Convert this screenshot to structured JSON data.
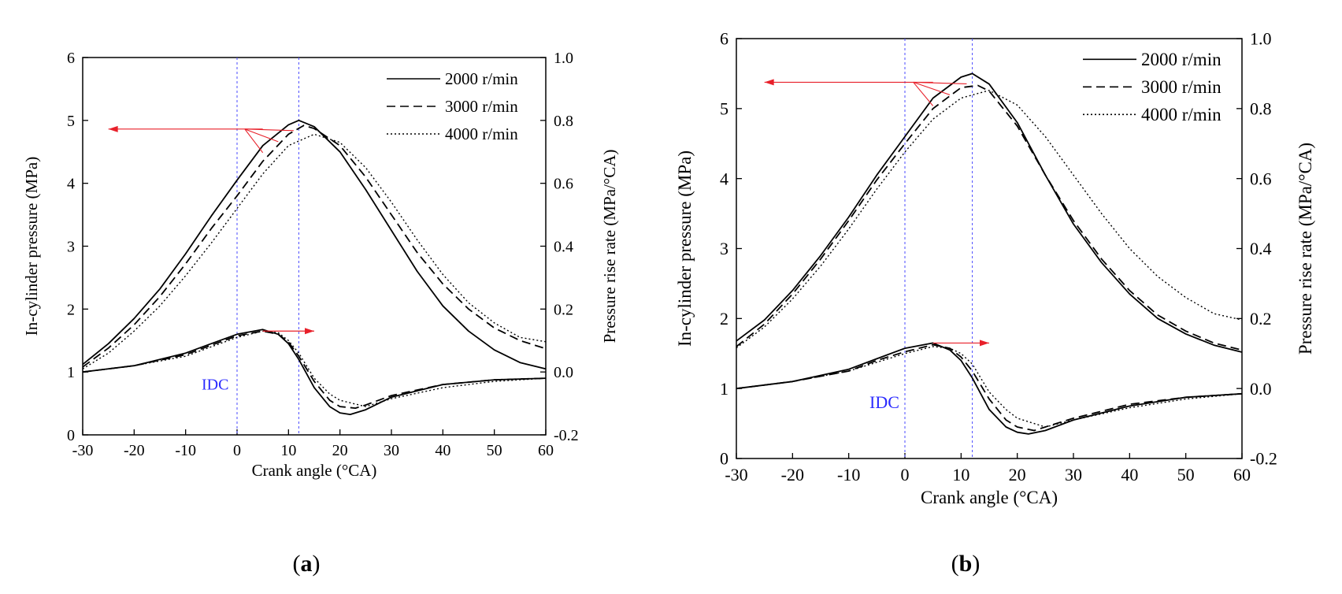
{
  "chart_data": [
    {
      "type": "line",
      "panel_label": "a",
      "xlabel": "Crank angle (°CA)",
      "ylabel_left": "In-cylinder pressure (MPa)",
      "ylabel_right": "Pressure rise rate (MPa/°CA)",
      "xlim": [
        -30,
        60
      ],
      "ylim_left": [
        0,
        6
      ],
      "ylim_right": [
        -0.2,
        1.0
      ],
      "xticks": [
        -30,
        -20,
        -10,
        0,
        10,
        20,
        30,
        40,
        50,
        60
      ],
      "yticks_left": [
        0,
        1,
        2,
        3,
        4,
        5,
        6
      ],
      "yticks_right": [
        "-0.2",
        "0.0",
        "0.2",
        "0.4",
        "0.6",
        "0.8",
        "1.0"
      ],
      "annotation": "IDC",
      "annotation_x": 0,
      "reference_line_x": 12,
      "legend": [
        "2000 r/min",
        "3000 r/min",
        "4000 r/min"
      ],
      "series": [
        {
          "name": "2000 r/min",
          "kind": "pressure",
          "style": "solid",
          "x": [
            -30,
            -25,
            -20,
            -15,
            -10,
            -5,
            0,
            5,
            10,
            12,
            15,
            20,
            25,
            30,
            35,
            40,
            45,
            50,
            55,
            60
          ],
          "y": [
            1.12,
            1.45,
            1.85,
            2.32,
            2.88,
            3.48,
            4.05,
            4.6,
            4.93,
            5.0,
            4.9,
            4.5,
            3.9,
            3.25,
            2.6,
            2.05,
            1.65,
            1.35,
            1.15,
            1.05
          ]
        },
        {
          "name": "3000 r/min",
          "kind": "pressure",
          "style": "dashed",
          "x": [
            -30,
            -25,
            -20,
            -15,
            -10,
            -5,
            0,
            5,
            10,
            13,
            15,
            20,
            25,
            30,
            35,
            40,
            45,
            50,
            55,
            60
          ],
          "y": [
            1.08,
            1.38,
            1.75,
            2.2,
            2.72,
            3.28,
            3.8,
            4.35,
            4.78,
            4.92,
            4.87,
            4.6,
            4.1,
            3.5,
            2.9,
            2.4,
            2.0,
            1.7,
            1.5,
            1.37
          ]
        },
        {
          "name": "4000 r/min",
          "kind": "pressure",
          "style": "dotted",
          "x": [
            -30,
            -25,
            -20,
            -15,
            -10,
            -5,
            0,
            5,
            10,
            15,
            20,
            25,
            30,
            35,
            40,
            45,
            50,
            55,
            60
          ],
          "y": [
            1.05,
            1.3,
            1.65,
            2.05,
            2.53,
            3.05,
            3.6,
            4.15,
            4.6,
            4.78,
            4.65,
            4.25,
            3.7,
            3.1,
            2.55,
            2.1,
            1.78,
            1.55,
            1.48
          ]
        },
        {
          "name": "2000 r/min",
          "kind": "rate",
          "style": "solid",
          "x": [
            -30,
            -20,
            -10,
            -5,
            0,
            5,
            8,
            10,
            12,
            15,
            18,
            20,
            22,
            25,
            30,
            40,
            50,
            60
          ],
          "y": [
            0.0,
            0.02,
            0.06,
            0.09,
            0.12,
            0.135,
            0.12,
            0.09,
            0.04,
            -0.05,
            -0.11,
            -0.13,
            -0.135,
            -0.12,
            -0.08,
            -0.04,
            -0.025,
            -0.02
          ]
        },
        {
          "name": "3000 r/min",
          "kind": "rate",
          "style": "dashed",
          "x": [
            -30,
            -20,
            -10,
            -5,
            0,
            5,
            8,
            10,
            12,
            15,
            18,
            20,
            23,
            25,
            30,
            40,
            50,
            60
          ],
          "y": [
            0.0,
            0.02,
            0.055,
            0.085,
            0.115,
            0.13,
            0.12,
            0.095,
            0.05,
            -0.03,
            -0.09,
            -0.11,
            -0.115,
            -0.105,
            -0.075,
            -0.04,
            -0.025,
            -0.02
          ]
        },
        {
          "name": "4000 r/min",
          "kind": "rate",
          "style": "dotted",
          "x": [
            -30,
            -20,
            -10,
            -5,
            0,
            5,
            8,
            10,
            12,
            15,
            18,
            20,
            25,
            30,
            40,
            50,
            60
          ],
          "y": [
            0.0,
            0.02,
            0.05,
            0.08,
            0.11,
            0.13,
            0.125,
            0.1,
            0.06,
            -0.02,
            -0.07,
            -0.09,
            -0.11,
            -0.085,
            -0.05,
            -0.03,
            -0.02
          ]
        }
      ]
    },
    {
      "type": "line",
      "panel_label": "b",
      "xlabel": "Crank angle (°CA)",
      "ylabel_left": "In-cylinder pressure (MPa)",
      "ylabel_right": "Pressure rise rate (MPa/°CA)",
      "xlim": [
        -30,
        60
      ],
      "ylim_left": [
        0,
        6
      ],
      "ylim_right": [
        -0.2,
        1.0
      ],
      "xticks": [
        -30,
        -20,
        -10,
        0,
        10,
        20,
        30,
        40,
        50,
        60
      ],
      "yticks_left": [
        0,
        1,
        2,
        3,
        4,
        5,
        6
      ],
      "yticks_right": [
        "-0.2",
        "0.0",
        "0.2",
        "0.4",
        "0.6",
        "0.8",
        "1.0"
      ],
      "annotation": "IDC",
      "annotation_x": 0,
      "reference_line_x": 12,
      "legend": [
        "2000 r/min",
        "3000 r/min",
        "4000 r/min"
      ],
      "series": [
        {
          "name": "2000 r/min",
          "kind": "pressure",
          "style": "solid",
          "x": [
            -30,
            -25,
            -20,
            -15,
            -10,
            -5,
            0,
            5,
            10,
            12,
            15,
            20,
            25,
            30,
            35,
            40,
            45,
            50,
            55,
            60
          ],
          "y": [
            1.68,
            1.98,
            2.4,
            2.9,
            3.45,
            4.05,
            4.6,
            5.15,
            5.45,
            5.5,
            5.35,
            4.8,
            4.05,
            3.35,
            2.8,
            2.35,
            2.0,
            1.78,
            1.62,
            1.52
          ]
        },
        {
          "name": "3000 r/min",
          "kind": "pressure",
          "style": "dashed",
          "x": [
            -30,
            -25,
            -20,
            -15,
            -10,
            -5,
            0,
            5,
            10,
            13,
            15,
            20,
            25,
            30,
            35,
            40,
            45,
            50,
            55,
            60
          ],
          "y": [
            1.6,
            1.92,
            2.35,
            2.85,
            3.4,
            3.98,
            4.5,
            5.0,
            5.3,
            5.33,
            5.25,
            4.75,
            4.05,
            3.4,
            2.85,
            2.4,
            2.05,
            1.82,
            1.65,
            1.55
          ]
        },
        {
          "name": "4000 r/min",
          "kind": "pressure",
          "style": "dotted",
          "x": [
            -30,
            -25,
            -20,
            -15,
            -10,
            -5,
            0,
            5,
            10,
            15,
            20,
            25,
            30,
            35,
            40,
            45,
            50,
            55,
            60
          ],
          "y": [
            1.58,
            1.88,
            2.28,
            2.75,
            3.28,
            3.85,
            4.38,
            4.85,
            5.15,
            5.26,
            5.05,
            4.6,
            4.05,
            3.5,
            3.0,
            2.6,
            2.3,
            2.07,
            1.98
          ]
        },
        {
          "name": "2000 r/min",
          "kind": "rate",
          "style": "solid",
          "x": [
            -30,
            -20,
            -10,
            -5,
            0,
            5,
            8,
            10,
            12,
            15,
            18,
            20,
            22,
            25,
            30,
            40,
            50,
            60
          ],
          "y": [
            0.0,
            0.02,
            0.055,
            0.085,
            0.115,
            0.13,
            0.11,
            0.08,
            0.03,
            -0.06,
            -0.11,
            -0.125,
            -0.13,
            -0.12,
            -0.09,
            -0.05,
            -0.025,
            -0.015
          ]
        },
        {
          "name": "3000 r/min",
          "kind": "rate",
          "style": "dashed",
          "x": [
            -30,
            -20,
            -10,
            -5,
            0,
            5,
            8,
            10,
            12,
            15,
            18,
            20,
            23,
            25,
            30,
            40,
            50,
            60
          ],
          "y": [
            0.0,
            0.02,
            0.05,
            0.08,
            0.105,
            0.125,
            0.115,
            0.09,
            0.05,
            -0.03,
            -0.09,
            -0.11,
            -0.12,
            -0.11,
            -0.085,
            -0.045,
            -0.025,
            -0.015
          ]
        },
        {
          "name": "4000 r/min",
          "kind": "rate",
          "style": "dotted",
          "x": [
            -30,
            -20,
            -10,
            -5,
            0,
            5,
            8,
            10,
            12,
            15,
            18,
            20,
            25,
            30,
            40,
            50,
            60
          ],
          "y": [
            0.0,
            0.02,
            0.05,
            0.075,
            0.1,
            0.12,
            0.115,
            0.1,
            0.07,
            -0.01,
            -0.06,
            -0.085,
            -0.11,
            -0.09,
            -0.055,
            -0.03,
            -0.015
          ]
        }
      ]
    }
  ]
}
